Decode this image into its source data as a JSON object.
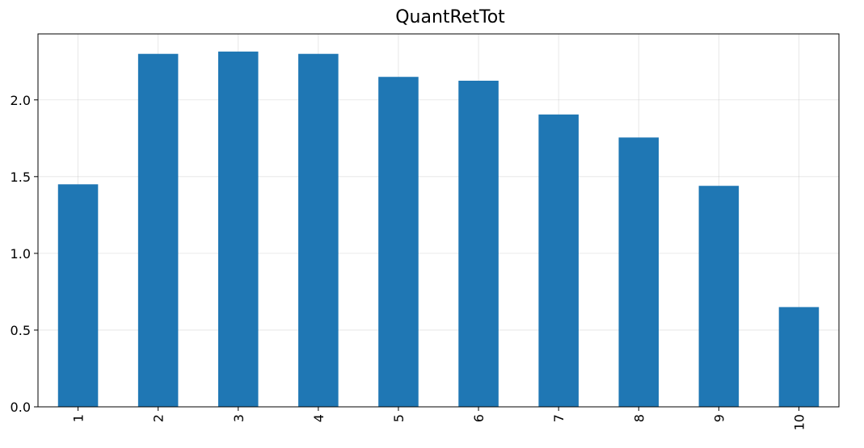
{
  "chart_data": {
    "type": "bar",
    "title": "QuantRetTot",
    "xlabel": "",
    "ylabel": "",
    "categories": [
      "1",
      "2",
      "3",
      "4",
      "5",
      "6",
      "7",
      "8",
      "9",
      "10"
    ],
    "values": [
      1.45,
      2.3,
      2.315,
      2.3,
      2.15,
      2.125,
      1.905,
      1.755,
      1.44,
      0.65
    ],
    "ylim": [
      0,
      2.43
    ],
    "yticks": [
      "0.0",
      "0.5",
      "1.0",
      "1.5",
      "2.0"
    ],
    "grid": true,
    "bar_color": "#1f77b4",
    "x_tick_rotation": "vertical"
  }
}
